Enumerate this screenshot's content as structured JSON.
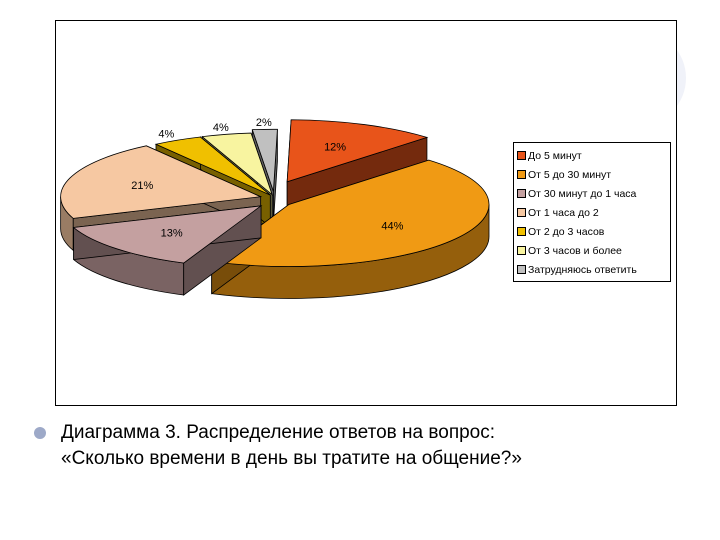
{
  "caption": {
    "line1": "Диаграмма 3. Распределение ответов на вопрос:",
    "line2": "«Сколько времени в день вы тратите на общение?»"
  },
  "chart_data": {
    "type": "pie",
    "style": "3d-exploded",
    "legend_position": "right",
    "slices": [
      {
        "label": "До 5 минут",
        "value": 12,
        "value_label": "12%",
        "color": "#e8541a"
      },
      {
        "label": "От 5 до 30 минут",
        "value": 44,
        "value_label": "44%",
        "color": "#f09a14"
      },
      {
        "label": "От 30 минут до 1 часа",
        "value": 13,
        "value_label": "13%",
        "color": "#c4a0a0"
      },
      {
        "label": "От 1 часа до 2",
        "value": 21,
        "value_label": "21%",
        "color": "#f6c8a2"
      },
      {
        "label": "От 2 до 3 часов",
        "value": 4,
        "value_label": "4%",
        "color": "#f0c000"
      },
      {
        "label": "От 3 часов и более",
        "value": 4,
        "value_label": "4%",
        "color": "#f8f4a0"
      },
      {
        "label": "Затрудняюсь ответить",
        "value": 2,
        "value_label": "2%",
        "color": "#c0c0c0"
      }
    ]
  }
}
